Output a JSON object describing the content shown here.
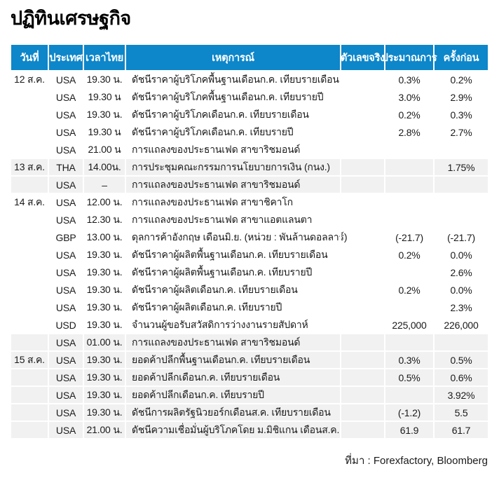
{
  "title": "ปฏิทินเศรษฐกิจ",
  "source_note": "ที่มา : Forexfactory, Bloomberg",
  "colors": {
    "header_bg": "#0d86ca",
    "header_text": "#ffffff",
    "stripe_bg": "#f1f1f1",
    "text": "#1a1a1a"
  },
  "chart_data": {
    "type": "table",
    "title": "ปฏิทินเศรษฐกิจ",
    "source": "ที่มา : Forexfactory, Bloomberg",
    "legend_position": "none",
    "grid": "row-stripes-by-date-group",
    "columns": [
      "วันที่",
      "ประเทศ",
      "เวลาไทย",
      "เหตุการณ์",
      "ตัวเลขจริง",
      "ประมาณการ",
      "ครั้งก่อน"
    ],
    "rows": [
      {
        "date": "12 ส.ค.",
        "country": "USA",
        "time": "19.30 น.",
        "event": "ดัชนีราคาผู้บริโภคพื้นฐานเดือนก.ค. เทียบรายเดือน",
        "actual": "",
        "forecast": "0.3%",
        "previous": "0.2%",
        "shaded": false
      },
      {
        "date": "",
        "country": "USA",
        "time": "19.30 น",
        "event": "ดัชนีราคาผู้บริโภคพื้นฐานเดือนก.ค. เทียบรายปี",
        "actual": "",
        "forecast": "3.0%",
        "previous": "2.9%",
        "shaded": false
      },
      {
        "date": "",
        "country": "USA",
        "time": "19.30 น.",
        "event": "ดัชนีราคาผู้บริโภคเดือนก.ค. เทียบรายเดือน",
        "actual": "",
        "forecast": "0.2%",
        "previous": "0.3%",
        "shaded": false
      },
      {
        "date": "",
        "country": "USA",
        "time": "19.30 น",
        "event": "ดัชนีราคาผู้บริโภคเดือนก.ค. เทียบรายปี",
        "actual": "",
        "forecast": "2.8%",
        "previous": "2.7%",
        "shaded": false
      },
      {
        "date": "",
        "country": "USA",
        "time": "21.00 น",
        "event": "การแถลงของประธานเฟด สาขาริชมอนด์",
        "actual": "",
        "forecast": "",
        "previous": "",
        "shaded": false
      },
      {
        "date": "13 ส.ค.",
        "country": "THA",
        "time": "14.00น.",
        "event": "การประชุมคณะกรรมการนโยบายการเงิน (กนง.)",
        "actual": "",
        "forecast": "",
        "previous": "1.75%",
        "shaded": true
      },
      {
        "date": "",
        "country": "USA",
        "time": "–",
        "event": "การแถลงของประธานเฟด สาขาริชมอนด์",
        "actual": "",
        "forecast": "",
        "previous": "",
        "shaded": true
      },
      {
        "date": "14 ส.ค.",
        "country": "USA",
        "time": "12.00 น.",
        "event": "การแถลงของประธานเฟด สาขาชิคาโก",
        "actual": "",
        "forecast": "",
        "previous": "",
        "shaded": false
      },
      {
        "date": "",
        "country": "USA",
        "time": "12.30 น.",
        "event": "การแถลงของประธานเฟด สาขาแอตแลนตา",
        "actual": "",
        "forecast": "",
        "previous": "",
        "shaded": false
      },
      {
        "date": "",
        "country": "GBP",
        "time": "13.00 น.",
        "event": "ดุลการค้าอังกฤษ เดือนมิ.ย. (หน่วย : พันล้านดอลลาร์)",
        "actual": "",
        "forecast": "(-21.7)",
        "previous": "(-21.7)",
        "shaded": false
      },
      {
        "date": "",
        "country": "USA",
        "time": "19.30 น.",
        "event": "ดัชนีราคาผู้ผลิตพื้นฐานเดือนก.ค. เทียบรายเดือน",
        "actual": "",
        "forecast": "0.2%",
        "previous": "0.0%",
        "shaded": false
      },
      {
        "date": "",
        "country": "USA",
        "time": "19.30 น.",
        "event": "ดัชนีราคาผู้ผลิตพื้นฐานเดือนก.ค. เทียบรายปี",
        "actual": "",
        "forecast": "",
        "previous": "2.6%",
        "shaded": false
      },
      {
        "date": "",
        "country": "USA",
        "time": "19.30 น.",
        "event": "ดัชนีราคาผู้ผลิตเดือนก.ค. เทียบรายเดือน",
        "actual": "",
        "forecast": "0.2%",
        "previous": "0.0%",
        "shaded": false
      },
      {
        "date": "",
        "country": "USA",
        "time": "19.30 น.",
        "event": "ดัชนีราคาผู้ผลิตเดือนก.ค. เทียบรายปี",
        "actual": "",
        "forecast": "",
        "previous": "2.3%",
        "shaded": false
      },
      {
        "date": "",
        "country": "USD",
        "time": "19.30 น.",
        "event": "จำนวนผู้ขอรับสวัสดิการว่างงานรายสัปดาห์",
        "actual": "",
        "forecast": "225,000",
        "previous": "226,000",
        "shaded": false
      },
      {
        "date": "",
        "country": "USA",
        "time": "01.00 น.",
        "event": "การแถลงของประธานเฟด สาขาริชมอนด์",
        "actual": "",
        "forecast": "",
        "previous": "",
        "shaded": true
      },
      {
        "date": "15 ส.ค.",
        "country": "USA",
        "time": "19.30 น.",
        "event": "ยอดค้าปลีกพื้นฐานเดือนก.ค. เทียบรายเดือน",
        "actual": "",
        "forecast": "0.3%",
        "previous": "0.5%",
        "shaded": true
      },
      {
        "date": "",
        "country": "USA",
        "time": "19.30 น.",
        "event": "ยอดค้าปลีกเดือนก.ค. เทียบรายเดือน",
        "actual": "",
        "forecast": "0.5%",
        "previous": "0.6%",
        "shaded": true
      },
      {
        "date": "",
        "country": "USA",
        "time": "19.30 น.",
        "event": "ยอดค้าปลีกเดือนก.ค. เทียบรายปี",
        "actual": "",
        "forecast": "",
        "previous": "3.92%",
        "shaded": true
      },
      {
        "date": "",
        "country": "USA",
        "time": "19.30 น.",
        "event": "ดัชนีการผลิตรัฐนิวยอร์กเดือนส.ค. เทียบรายเดือน",
        "actual": "",
        "forecast": "(-1.2)",
        "previous": "5.5",
        "shaded": true
      },
      {
        "date": "",
        "country": "USA",
        "time": "21.00 น.",
        "event": "ดัชนีความเชื่อมั่นผู้บริโภคโดย ม.มิชิแกน เดือนส.ค.",
        "actual": "",
        "forecast": "61.9",
        "previous": "61.7",
        "shaded": true
      }
    ]
  }
}
